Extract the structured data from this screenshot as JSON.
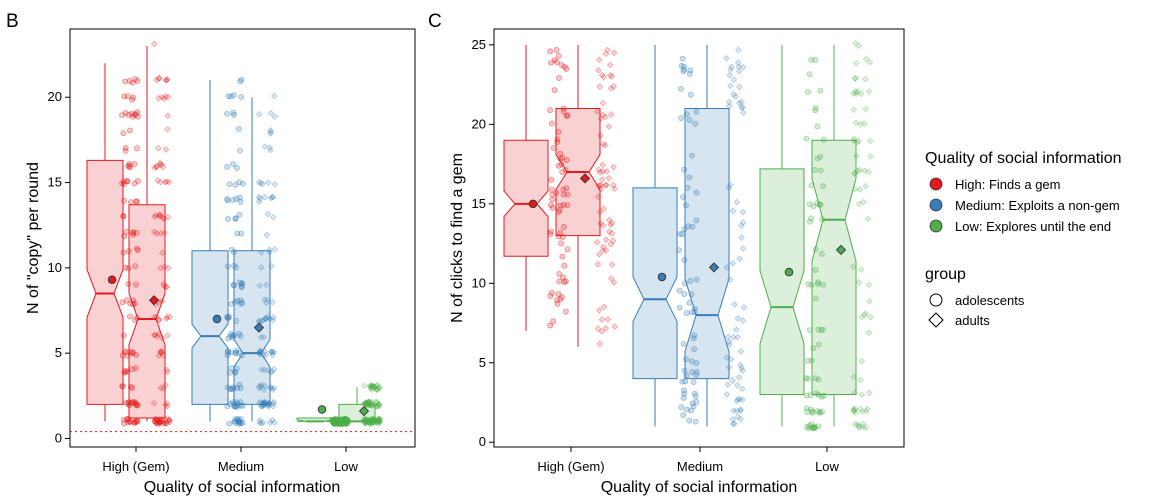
{
  "colors": {
    "high": "#e41a1c",
    "medium": "#377eb8",
    "low": "#4daf4a"
  },
  "legend": {
    "quality_title": "Quality of social information",
    "quality_items": [
      "High: Finds a gem",
      "Medium: Exploits a non-gem",
      "Low: Explores until the end"
    ],
    "group_title": "group",
    "group_items": [
      "adolescents",
      "adults"
    ]
  },
  "chart_data": [
    {
      "type": "boxplot",
      "panel_label": "B",
      "xlabel": "Quality of social information",
      "ylabel": "N of \"copy\" per round",
      "categories": [
        "High (Gem)",
        "Medium",
        "Low"
      ],
      "ylim": [
        -0.5,
        24
      ],
      "yticks": [
        0,
        5,
        10,
        15,
        20
      ],
      "reference_line": 0.4,
      "groups": [
        "adolescents",
        "adults"
      ],
      "boxes": [
        {
          "category": "High (Gem)",
          "group": "adolescents",
          "whisker_low": 1,
          "q1": 2,
          "median": 8.5,
          "q3": 16.3,
          "whisker_high": 22,
          "notch": [
            7.1,
            9.9
          ],
          "mean": 9.3
        },
        {
          "category": "High (Gem)",
          "group": "adults",
          "whisker_low": 1,
          "q1": 1.2,
          "median": 7,
          "q3": 13.7,
          "whisker_high": 23,
          "notch": [
            5.5,
            8.5
          ],
          "mean": 8.1
        },
        {
          "category": "Medium",
          "group": "adolescents",
          "whisker_low": 1,
          "q1": 2,
          "median": 6,
          "q3": 11,
          "whisker_high": 21,
          "notch": [
            5.3,
            6.7
          ],
          "mean": 7
        },
        {
          "category": "Medium",
          "group": "adults",
          "whisker_low": 1,
          "q1": 2,
          "median": 5,
          "q3": 11,
          "whisker_high": 20,
          "notch": [
            4.2,
            5.8
          ],
          "mean": 6.5
        },
        {
          "category": "Low",
          "group": "adolescents",
          "whisker_low": 1,
          "q1": 1,
          "median": 1,
          "q3": 1.2,
          "whisker_high": 1.2,
          "notch": [
            0.9,
            1.1
          ],
          "mean": 1.7
        },
        {
          "category": "Low",
          "group": "adults",
          "whisker_low": 1,
          "q1": 1,
          "median": 1,
          "q3": 2,
          "whisker_high": 3,
          "notch": [
            0.8,
            1.2
          ],
          "mean": 1.6
        }
      ]
    },
    {
      "type": "boxplot",
      "panel_label": "C",
      "xlabel": "Quality of social information",
      "ylabel": "N of clicks to find a gem",
      "categories": [
        "High (Gem)",
        "Medium",
        "Low"
      ],
      "ylim": [
        -0.3,
        26
      ],
      "yticks": [
        0,
        5,
        10,
        15,
        20,
        25
      ],
      "groups": [
        "adolescents",
        "adults"
      ],
      "boxes": [
        {
          "category": "High (Gem)",
          "group": "adolescents",
          "whisker_low": 7,
          "q1": 11.7,
          "median": 15,
          "q3": 19,
          "whisker_high": 25,
          "notch": [
            14.2,
            15.8
          ],
          "mean": 15
        },
        {
          "category": "High (Gem)",
          "group": "adults",
          "whisker_low": 6,
          "q1": 13,
          "median": 17,
          "q3": 21,
          "whisker_high": 25,
          "notch": [
            15.9,
            18.1
          ],
          "mean": 16.6
        },
        {
          "category": "Medium",
          "group": "adolescents",
          "whisker_low": 1,
          "q1": 4,
          "median": 9,
          "q3": 16,
          "whisker_high": 25,
          "notch": [
            7.6,
            10.4
          ],
          "mean": 10.4
        },
        {
          "category": "Medium",
          "group": "adults",
          "whisker_low": 1,
          "q1": 4,
          "median": 8,
          "q3": 21,
          "whisker_high": 25,
          "notch": [
            5.7,
            10.3
          ],
          "mean": 11
        },
        {
          "category": "Low",
          "group": "adolescents",
          "whisker_low": 1,
          "q1": 3,
          "median": 8.5,
          "q3": 17.2,
          "whisker_high": 25,
          "notch": [
            6.2,
            10.8
          ],
          "mean": 10.7
        },
        {
          "category": "Low",
          "group": "adults",
          "whisker_low": 1,
          "q1": 3,
          "median": 14,
          "q3": 19,
          "whisker_high": 25,
          "notch": [
            11.4,
            16.6
          ],
          "mean": 12.1
        }
      ]
    }
  ]
}
